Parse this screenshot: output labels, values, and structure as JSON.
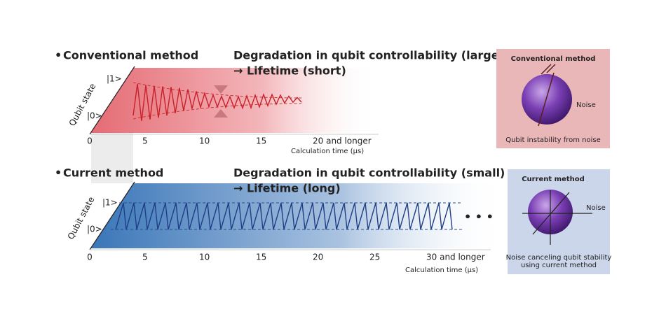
{
  "panels": [
    {
      "method": "Conventional method",
      "headline": "Degradation in qubit controllability (large)",
      "lifetime": "→ Lifetime (short)",
      "y_axis": "Qubit state",
      "state_1": "|1>",
      "state_0": "|0>",
      "ticks": [
        "0",
        "5",
        "10",
        "15",
        "20 and longer"
      ],
      "x_axis": "Calculation time (µs)"
    },
    {
      "method": "Current method",
      "headline": "Degradation in qubit controllability (small)",
      "lifetime": "→ Lifetime (long)",
      "y_axis": "Qubit state",
      "state_1": "|1>",
      "state_0": "|0>",
      "ticks": [
        "0",
        "5",
        "10",
        "15",
        "20",
        "25",
        "30 and longer"
      ],
      "x_axis": "Calculation time (µs)",
      "ellipsis": "• • •"
    }
  ],
  "insets": [
    {
      "title": "Conventional method",
      "noise": "Noise",
      "caption": [
        "Qubit instability from noise"
      ]
    },
    {
      "title": "Current method",
      "noise": "Noise",
      "caption": [
        "Noise canceling qubit stability",
        "using current method"
      ]
    }
  ]
}
